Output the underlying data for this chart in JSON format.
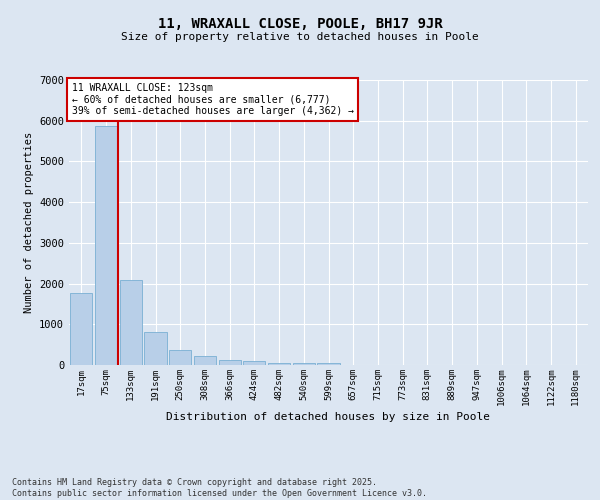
{
  "title": "11, WRAXALL CLOSE, POOLE, BH17 9JR",
  "subtitle": "Size of property relative to detached houses in Poole",
  "xlabel": "Distribution of detached houses by size in Poole",
  "ylabel": "Number of detached properties",
  "bar_color": "#b8cfe8",
  "bar_edge_color": "#7aafd4",
  "background_color": "#dce6f2",
  "grid_color": "#ffffff",
  "vline_color": "#cc0000",
  "annotation_text": "11 WRAXALL CLOSE: 123sqm\n← 60% of detached houses are smaller (6,777)\n39% of semi-detached houses are larger (4,362) →",
  "annotation_box_color": "#ffffff",
  "annotation_box_edge": "#cc0000",
  "categories": [
    "17sqm",
    "75sqm",
    "133sqm",
    "191sqm",
    "250sqm",
    "308sqm",
    "366sqm",
    "424sqm",
    "482sqm",
    "540sqm",
    "599sqm",
    "657sqm",
    "715sqm",
    "773sqm",
    "831sqm",
    "889sqm",
    "947sqm",
    "1006sqm",
    "1064sqm",
    "1122sqm",
    "1180sqm"
  ],
  "values": [
    1780,
    5870,
    2090,
    820,
    380,
    220,
    130,
    90,
    55,
    50,
    40,
    0,
    0,
    0,
    0,
    0,
    0,
    0,
    0,
    0,
    0
  ],
  "ylim": [
    0,
    7000
  ],
  "yticks": [
    0,
    1000,
    2000,
    3000,
    4000,
    5000,
    6000,
    7000
  ],
  "footnote": "Contains HM Land Registry data © Crown copyright and database right 2025.\nContains public sector information licensed under the Open Government Licence v3.0."
}
